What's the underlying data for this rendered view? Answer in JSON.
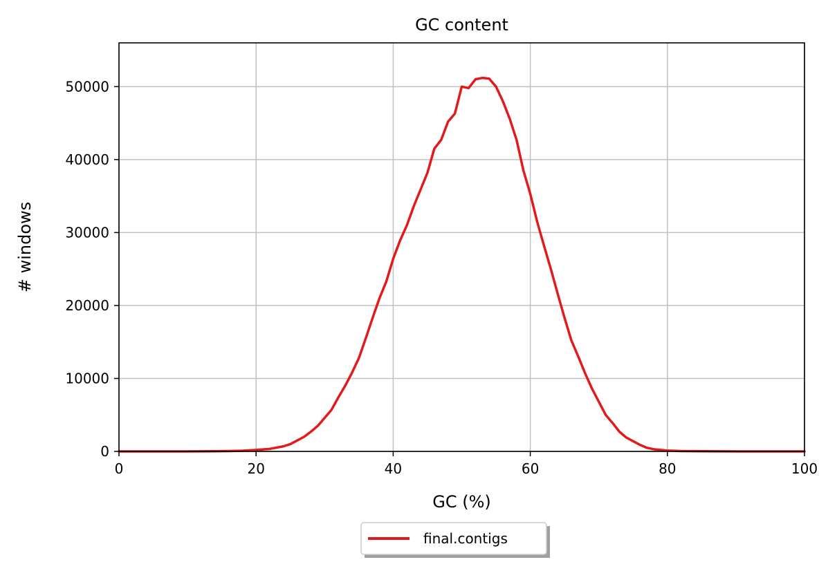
{
  "chart_data": {
    "type": "line",
    "title": "GC content",
    "xlabel": "GC (%)",
    "ylabel": "# windows",
    "xlim": [
      0,
      100
    ],
    "ylim": [
      0,
      56000
    ],
    "xticks": [
      0,
      20,
      40,
      60,
      80,
      100
    ],
    "yticks": [
      0,
      10000,
      20000,
      30000,
      40000,
      50000
    ],
    "grid": true,
    "legend_position": "bottom-center",
    "series": [
      {
        "name": "final.contigs",
        "color": "#e31a1c",
        "x": [
          0,
          5,
          10,
          14,
          16,
          18,
          20,
          22,
          24,
          25,
          26,
          27,
          28,
          29,
          30,
          31,
          32,
          33,
          34,
          35,
          36,
          37,
          38,
          39,
          40,
          41,
          42,
          43,
          44,
          45,
          46,
          47,
          48,
          49,
          50,
          51,
          52,
          53,
          54,
          55,
          56,
          57,
          58,
          59,
          60,
          61,
          62,
          63,
          64,
          65,
          66,
          67,
          68,
          69,
          70,
          71,
          72,
          73,
          74,
          75,
          76,
          77,
          78,
          79,
          80,
          82,
          85,
          90,
          100
        ],
        "y": [
          0,
          0,
          0,
          20,
          50,
          100,
          200,
          350,
          700,
          1000,
          1500,
          2000,
          2700,
          3500,
          4600,
          5700,
          7400,
          9000,
          10800,
          12800,
          15500,
          18300,
          21000,
          23300,
          26400,
          28900,
          31000,
          33600,
          35900,
          38200,
          41500,
          42700,
          45200,
          46300,
          50000,
          49800,
          51000,
          51200,
          51100,
          50000,
          48000,
          45600,
          42700,
          38500,
          35300,
          31500,
          28200,
          25000,
          21600,
          18300,
          15200,
          13000,
          10700,
          8600,
          6800,
          5000,
          3900,
          2700,
          1900,
          1400,
          900,
          500,
          300,
          200,
          120,
          50,
          20,
          0,
          0
        ]
      }
    ]
  }
}
